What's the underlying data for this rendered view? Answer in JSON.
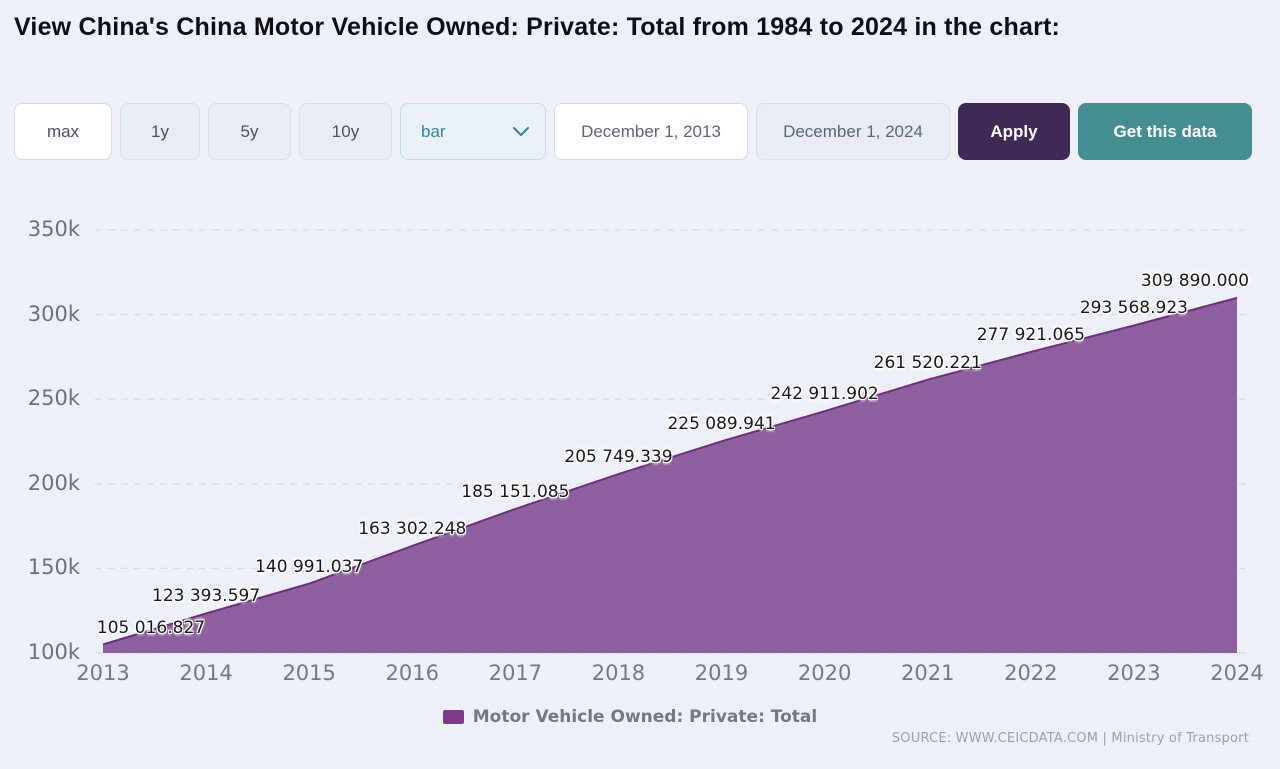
{
  "page": {
    "title": "View China's China Motor Vehicle Owned: Private: Total from 1984 to 2024 in the chart:"
  },
  "controls": {
    "range_buttons": [
      {
        "label": "max",
        "active": true
      },
      {
        "label": "1y",
        "active": false
      },
      {
        "label": "5y",
        "active": false
      },
      {
        "label": "10y",
        "active": false
      }
    ],
    "chart_type_select": {
      "value": "bar"
    },
    "start_date": {
      "value": "December 1, 2013"
    },
    "end_date": {
      "value": "December 1, 2024"
    },
    "apply_label": "Apply",
    "get_data_label": "Get this data"
  },
  "chart_data": {
    "type": "area",
    "x": [
      2013,
      2014,
      2015,
      2016,
      2017,
      2018,
      2019,
      2020,
      2021,
      2022,
      2023,
      2024
    ],
    "series": [
      {
        "name": "Motor Vehicle Owned: Private: Total",
        "values": [
          105016.827,
          123393.597,
          140991.037,
          163302.248,
          185151.085,
          205749.339,
          225089.941,
          242911.902,
          261520.221,
          277921.065,
          293568.923,
          309890.0
        ],
        "labels": [
          "105 016.827",
          "123 393.597",
          "140 991.037",
          "163 302.248",
          "185 151.085",
          "205 749.339",
          "225 089.941",
          "242 911.902",
          "261 520.221",
          "277 921.065",
          "293 568.923",
          "309 890.000"
        ]
      }
    ],
    "ylim": [
      100000,
      350000
    ],
    "ytick_step": 50000,
    "ytick_labels": [
      "100k",
      "150k",
      "200k",
      "250k",
      "300k",
      "350k"
    ],
    "grid": "horizontal-dashed",
    "legend_position": "bottom-center",
    "colors": {
      "fill": "#8e5f9e",
      "line": "#6f2e7a",
      "swatch": "#7b3a8c",
      "grid": "#d8dde3"
    }
  },
  "footer": {
    "source_text": "SOURCE: WWW.CEICDATA.COM | Ministry of Transport"
  }
}
